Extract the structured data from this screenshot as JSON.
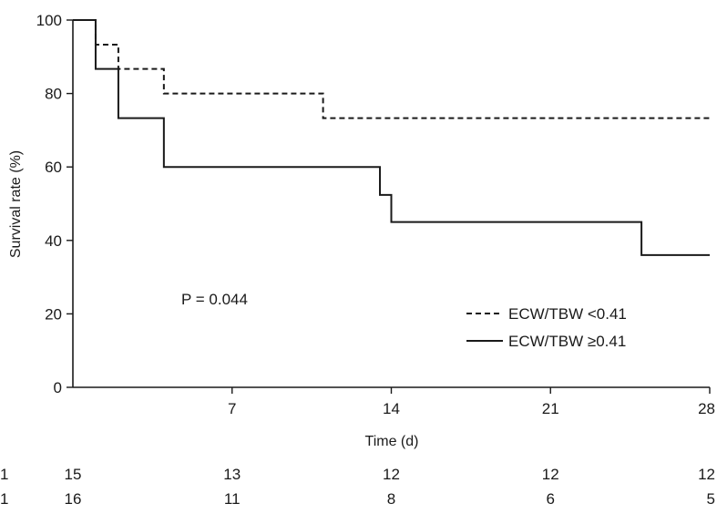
{
  "chart_data": {
    "type": "line",
    "step": true,
    "xlabel": "Time (d)",
    "ylabel": "Survival rate (%)",
    "xlim": [
      0,
      28
    ],
    "ylim": [
      0,
      100
    ],
    "xticks": [
      7,
      14,
      21,
      28
    ],
    "yticks": [
      0,
      20,
      40,
      60,
      80,
      100
    ],
    "grid": false,
    "legend_position": "lower-right",
    "annotation": "P = 0.044",
    "series": [
      {
        "name": "ECW/TBW <0.41",
        "style": "dashed",
        "color": "#1a1a1a",
        "x": [
          0,
          1,
          2,
          4,
          11,
          28
        ],
        "y": [
          100,
          93.3,
          86.7,
          80,
          73.3,
          73.3
        ]
      },
      {
        "name": "ECW/TBW ≥0.41",
        "style": "solid",
        "color": "#1a1a1a",
        "x": [
          0,
          1,
          2,
          4,
          13.5,
          14,
          25,
          28
        ],
        "y": [
          100,
          86.7,
          73.3,
          60,
          52.4,
          45,
          36,
          36
        ]
      }
    ],
    "at_risk": {
      "times": [
        0,
        7,
        14,
        21,
        28
      ],
      "rows": [
        {
          "series": "ECW/TBW <0.41",
          "label": "1",
          "counts": [
            "15",
            "13",
            "12",
            "12",
            "12"
          ]
        },
        {
          "series": "ECW/TBW ≥0.41",
          "label": "1",
          "counts": [
            "16",
            "11",
            "8",
            "6",
            "5"
          ]
        }
      ]
    }
  }
}
